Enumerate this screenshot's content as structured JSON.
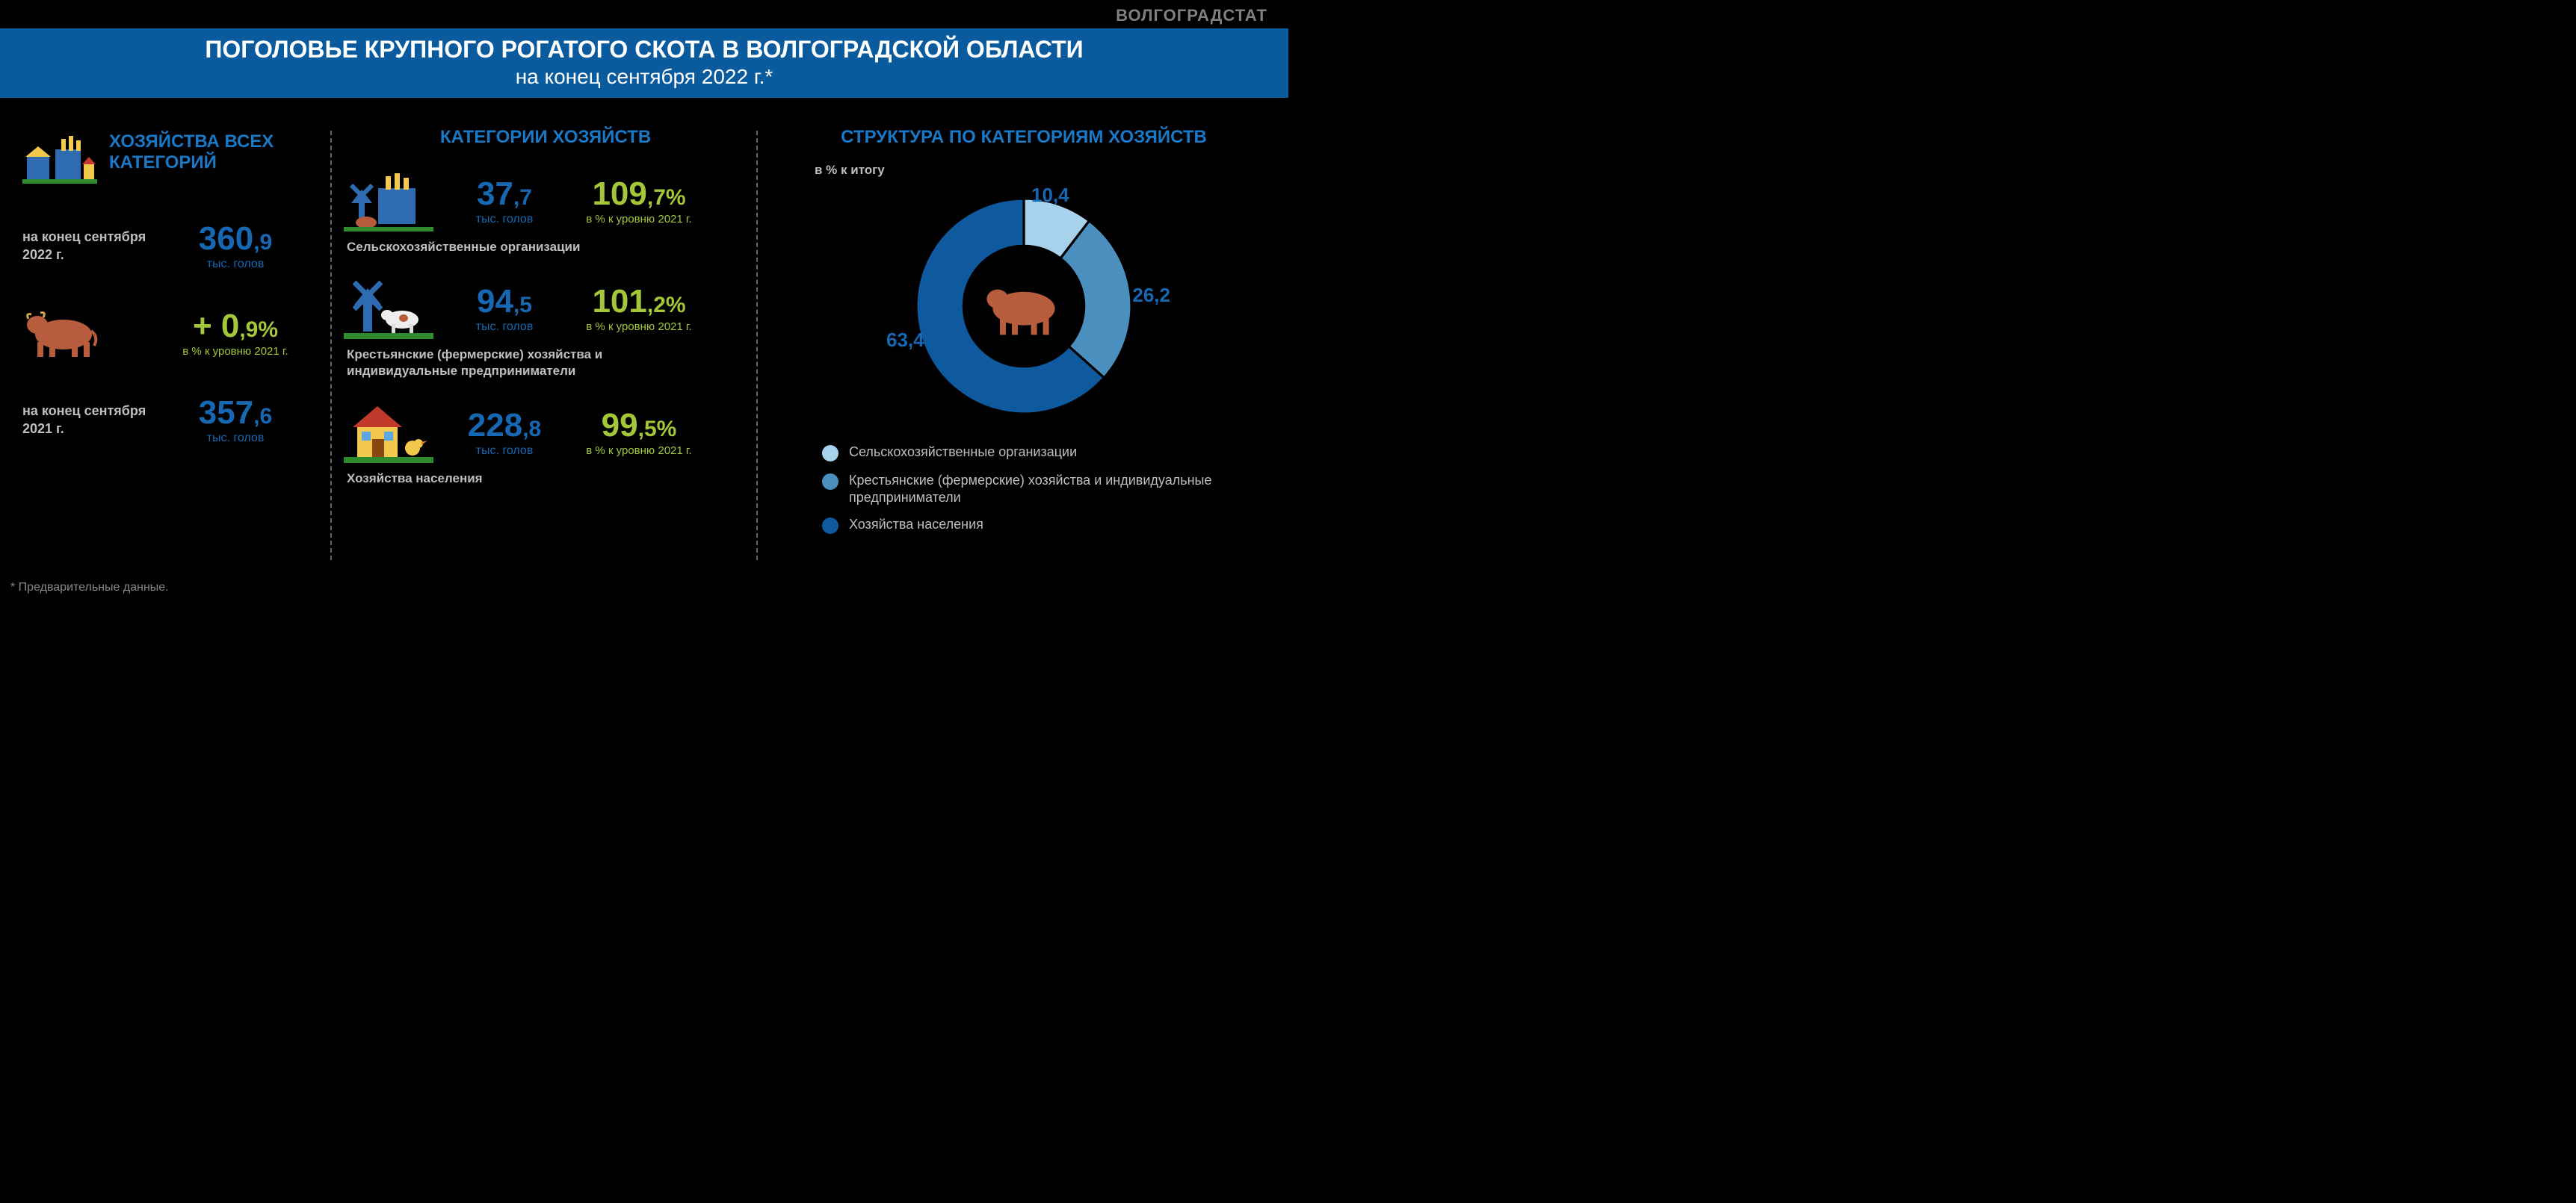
{
  "source": "ВОЛГОГРАДСТАТ",
  "title": "ПОГОЛОВЬЕ КРУПНОГО РОГАТОГО СКОТА В ВОЛГОГРАДСКОЙ ОБЛАСТИ",
  "subtitle": "на конец сентября 2022 г.*",
  "footnote": "* Предварительные данные.",
  "colors": {
    "background": "#000000",
    "title_bar": "#0a5a9e",
    "accent_blue": "#1668b3",
    "section_blue": "#1a79c7",
    "green": "#a4c639",
    "grey_text": "#bfbfbf",
    "grey_muted": "#808080",
    "divider": "#666666"
  },
  "typography": {
    "title_fontsize": 32,
    "subtitle_fontsize": 28,
    "section_title_fontsize": 24,
    "big_number_fontsize": 44,
    "big_number_small_fontsize": 30,
    "label_fontsize": 18,
    "unit_fontsize": 16,
    "legend_fontsize": 18,
    "footnote_fontsize": 16,
    "font_family": "Arial"
  },
  "panel1": {
    "title": "ХОЗЯЙСТВА ВСЕХ КАТЕГОРИЙ",
    "rows": [
      {
        "label": "на конец сентября 2022 г.",
        "value_int": "360",
        "value_dec": ",9",
        "unit": "тыс. голов"
      },
      {
        "change_int": "+ 0",
        "change_dec": ",9%",
        "change_unit": "в % к уровню 2021 г."
      },
      {
        "label": "на конец сентября 2021 г.",
        "value_int": "357",
        "value_dec": ",6",
        "unit": "тыс. голов"
      }
    ]
  },
  "panel2": {
    "title": "КАТЕГОРИИ ХОЗЯЙСТВ",
    "unit": "тыс. голов",
    "pct_unit": "в % к уровню 2021 г.",
    "categories": [
      {
        "name": "Сельскохозяйственные организации",
        "value_int": "37",
        "value_dec": ",7",
        "pct_int": "109",
        "pct_dec": ",7%"
      },
      {
        "name": "Крестьянские (фермерские) хозяйства и индивидуальные предприниматели",
        "value_int": "94",
        "value_dec": ",5",
        "pct_int": "101",
        "pct_dec": ",2%"
      },
      {
        "name": "Хозяйства населения",
        "value_int": "228",
        "value_dec": ",8",
        "pct_int": "99",
        "pct_dec": ",5%"
      }
    ]
  },
  "panel3": {
    "title": "СТРУКТУРА ПО КАТЕГОРИЯМ ХОЗЯЙСТВ",
    "subtitle": "в % к итогу",
    "donut": {
      "type": "donut",
      "start_angle_deg": 0,
      "inner_radius_pct": 56,
      "outer_radius_pct": 100,
      "background": "#000000",
      "slices": [
        {
          "label": "Сельскохозяйственные организации",
          "value": 10.4,
          "value_text": "10,4",
          "color": "#a8d1ec"
        },
        {
          "label": "Крестьянские (фермерские) хозяйства и индивидуальные предприниматели",
          "value": 26.2,
          "value_text": "26,2",
          "color": "#4b8fbf"
        },
        {
          "label": "Хозяйства населения",
          "value": 63.4,
          "value_text": "63,4",
          "color": "#0f5a9e"
        }
      ]
    }
  },
  "icon_colors": {
    "cow": "#b85c3e",
    "windmill": "#1668b3",
    "grass": "#2e8b2e",
    "factory_body": "#2e6bb0",
    "factory_smoke": "#f2c94c",
    "house_wall": "#f2c94c",
    "house_roof": "#c0392b",
    "chick": "#f2c94c"
  }
}
